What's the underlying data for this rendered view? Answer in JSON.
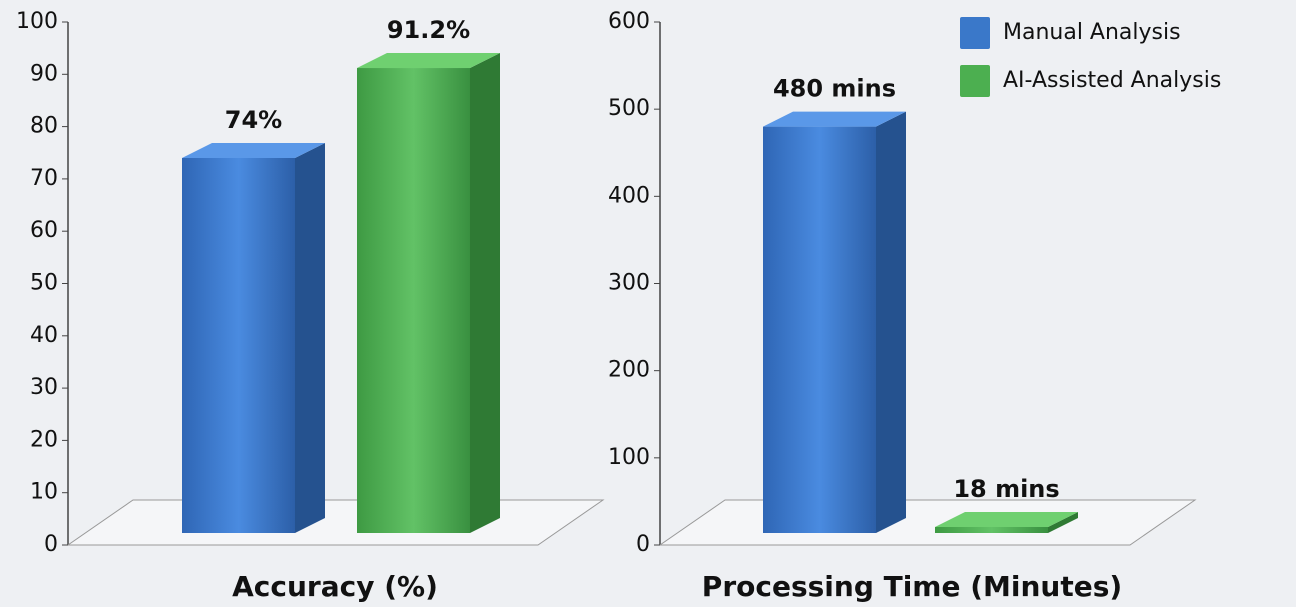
{
  "legend": [
    {
      "name": "Manual Analysis",
      "color": "#3a78c9"
    },
    {
      "name": "AI-Assisted Analysis",
      "color": "#4caf50"
    }
  ],
  "chart_data": [
    {
      "type": "bar",
      "xlabel": "Accuracy (%)",
      "values": [
        74,
        91.2
      ],
      "value_labels": [
        "74%",
        "91.2%"
      ],
      "ylim": [
        0,
        100
      ],
      "yticks": [
        0,
        10,
        20,
        30,
        40,
        50,
        60,
        70,
        80,
        90,
        100
      ]
    },
    {
      "type": "bar",
      "xlabel": "Processing Time (Minutes)",
      "values": [
        480,
        18
      ],
      "value_labels": [
        "480 mins",
        "18 mins"
      ],
      "ylim": [
        0,
        600
      ],
      "yticks": [
        0,
        100,
        200,
        300,
        400,
        500,
        600
      ]
    }
  ]
}
